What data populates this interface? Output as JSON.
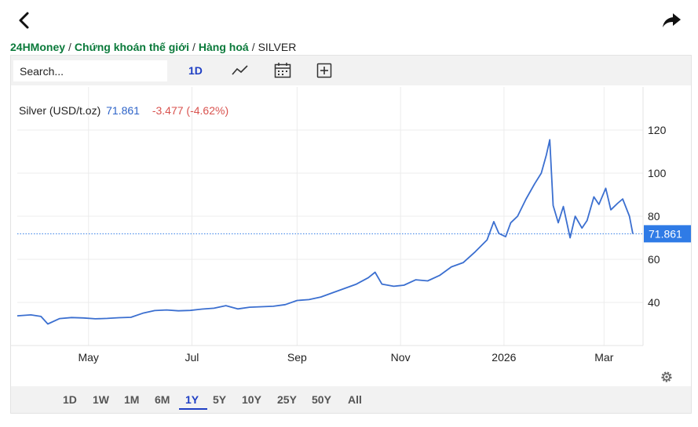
{
  "nav": {
    "back_icon": "chevron-left-icon",
    "share_icon": "share-arrow-icon"
  },
  "breadcrumb": [
    {
      "label": "24HMoney",
      "link": true
    },
    {
      "label": "Chứng khoán thế giới",
      "link": true
    },
    {
      "label": "Hàng hoá",
      "link": true
    },
    {
      "label": "SILVER",
      "link": false
    }
  ],
  "breadcrumb_separator": "/",
  "toolbar": {
    "search_placeholder": "Search...",
    "interval": "1D",
    "icons": [
      "line-chart-icon",
      "calendar-icon",
      "add-icon"
    ]
  },
  "quote": {
    "name": "Silver (USD/t.oz)",
    "price": "71.861",
    "change": "-3.477 (-4.62%)"
  },
  "colors": {
    "line": "#3b6fd0",
    "price_tag": "#2f7be6",
    "down": "#d9534f",
    "brand": "#0b7a3b",
    "active": "#1f3fc4"
  },
  "range_selector": {
    "options": [
      "1D",
      "1W",
      "1M",
      "6M",
      "1Y",
      "5Y",
      "10Y",
      "25Y",
      "50Y",
      "All"
    ],
    "selected": "1Y"
  },
  "settings_icon": "gear-icon",
  "chart_data": {
    "type": "line",
    "title": "",
    "xlabel": "",
    "ylabel": "",
    "x_ticks": [
      "May",
      "Jul",
      "Sep",
      "Nov",
      "2026",
      "Mar"
    ],
    "y_ticks": [
      40,
      60,
      80,
      100,
      120
    ],
    "ylim": [
      20,
      140
    ],
    "y_axis_side": "right",
    "last_price_label": "71.861",
    "grid": true,
    "series": [
      {
        "x": [
          "2025-03-20",
          "2025-03-28",
          "2025-04-03",
          "2025-04-07",
          "2025-04-14",
          "2025-04-21",
          "2025-04-28",
          "2025-05-05",
          "2025-05-12",
          "2025-05-19",
          "2025-05-26",
          "2025-06-02",
          "2025-06-09",
          "2025-06-16",
          "2025-06-23",
          "2025-06-30",
          "2025-07-07",
          "2025-07-14",
          "2025-07-21",
          "2025-07-28",
          "2025-08-04",
          "2025-08-11",
          "2025-08-18",
          "2025-08-25",
          "2025-09-01",
          "2025-09-08",
          "2025-09-15",
          "2025-09-22",
          "2025-09-29",
          "2025-10-06",
          "2025-10-13",
          "2025-10-17",
          "2025-10-21",
          "2025-10-28",
          "2025-11-03",
          "2025-11-10",
          "2025-11-17",
          "2025-11-24",
          "2025-12-01",
          "2025-12-08",
          "2025-12-15",
          "2025-12-22",
          "2025-12-26",
          "2025-12-29",
          "2026-01-02",
          "2026-01-05",
          "2026-01-09",
          "2026-01-14",
          "2026-01-19",
          "2026-01-23",
          "2026-01-26",
          "2026-01-28",
          "2026-01-30",
          "2026-02-02",
          "2026-02-05",
          "2026-02-09",
          "2026-02-12",
          "2026-02-16",
          "2026-02-19",
          "2026-02-23",
          "2026-02-26",
          "2026-03-02",
          "2026-03-05",
          "2026-03-09",
          "2026-03-12",
          "2026-03-16",
          "2026-03-18"
        ],
        "values": [
          33.8,
          34.2,
          33.5,
          30.0,
          32.5,
          33.0,
          32.8,
          32.4,
          32.6,
          32.9,
          33.1,
          35.0,
          36.2,
          36.5,
          36.1,
          36.3,
          36.9,
          37.3,
          38.5,
          37.0,
          37.8,
          38.0,
          38.2,
          39.0,
          40.9,
          41.3,
          42.5,
          44.5,
          46.5,
          48.5,
          51.5,
          54.0,
          48.5,
          47.5,
          48.0,
          50.5,
          50.0,
          52.5,
          56.5,
          58.5,
          63.5,
          69.0,
          77.5,
          72.0,
          70.5,
          77.0,
          80.0,
          88.0,
          95.0,
          100.0,
          108.5,
          115.5,
          85.0,
          77.0,
          84.5,
          70.0,
          80.0,
          74.5,
          78.0,
          89.0,
          85.5,
          93.0,
          83.0,
          86.0,
          88.0,
          80.0,
          71.861
        ]
      }
    ]
  }
}
